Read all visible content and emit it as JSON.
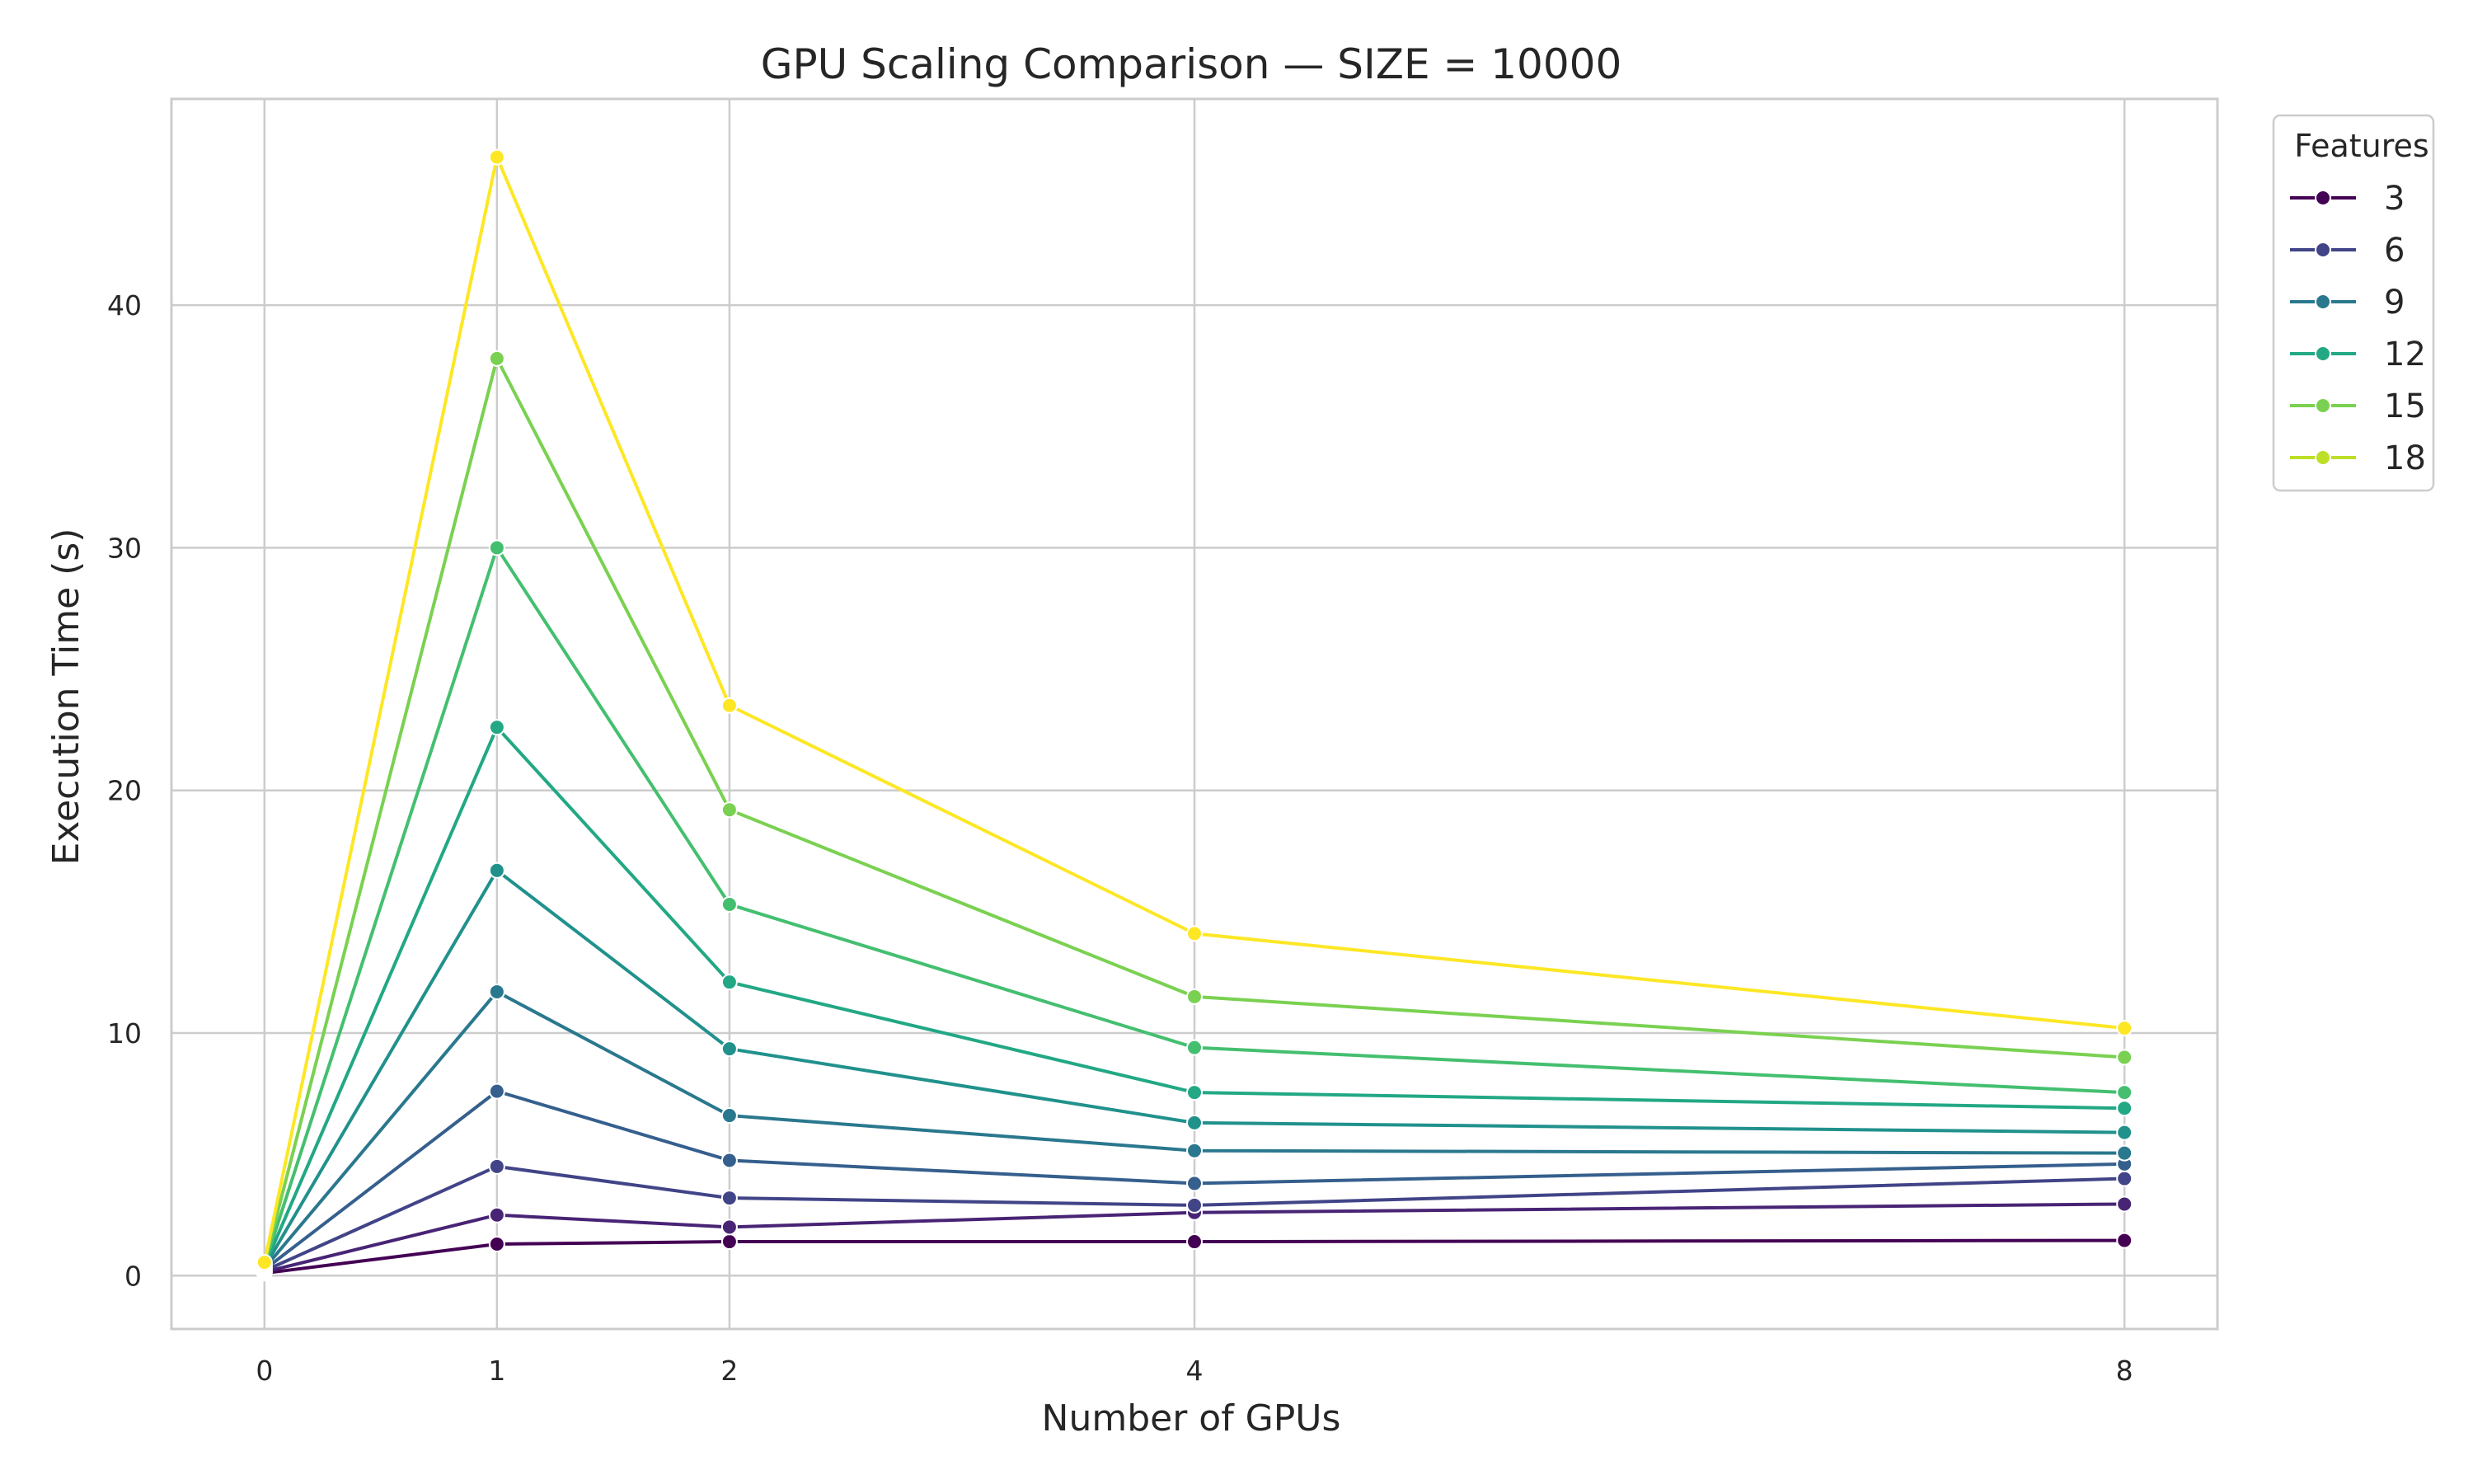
{
  "chart_data": {
    "type": "line",
    "title": "GPU Scaling Comparison — SIZE = 10000",
    "xlabel": "Number of GPUs",
    "ylabel": "Execution Time (s)",
    "x": [
      0,
      1,
      2,
      4,
      8
    ],
    "x_ticks": [
      "0",
      "1",
      "2",
      "4",
      "8"
    ],
    "y_ticks": [
      "0",
      "10",
      "20",
      "30",
      "40"
    ],
    "xlim": [
      -0.4,
      8.4
    ],
    "ylim": [
      -2.2,
      48.5
    ],
    "grid": true,
    "legend": {
      "title": "Features",
      "placement": "outside-top-right",
      "entries": [
        "3",
        "6",
        "9",
        "12",
        "15",
        "18"
      ]
    },
    "series": [
      {
        "label": "3",
        "legend": true,
        "color": "#440154",
        "values": [
          0.1,
          1.3,
          1.4,
          1.4,
          1.45
        ]
      },
      {
        "label": "",
        "legend": false,
        "color": "#482475",
        "values": [
          0.15,
          2.5,
          2.0,
          2.6,
          2.95
        ]
      },
      {
        "label": "6",
        "legend": true,
        "color": "#414487",
        "values": [
          0.2,
          4.5,
          3.2,
          2.9,
          4.0
        ]
      },
      {
        "label": "",
        "legend": false,
        "color": "#355f8d",
        "values": [
          0.25,
          7.6,
          4.75,
          3.8,
          4.6
        ]
      },
      {
        "label": "9",
        "legend": true,
        "color": "#2a788e",
        "values": [
          0.3,
          11.7,
          6.6,
          5.15,
          5.05
        ]
      },
      {
        "label": "",
        "legend": false,
        "color": "#21918c",
        "values": [
          0.35,
          16.7,
          9.35,
          6.3,
          5.9
        ]
      },
      {
        "label": "12",
        "legend": true,
        "color": "#22a884",
        "values": [
          0.4,
          22.6,
          12.1,
          7.55,
          6.9
        ]
      },
      {
        "label": "",
        "legend": false,
        "color": "#44bf70",
        "values": [
          0.45,
          30.0,
          15.3,
          9.4,
          7.55
        ]
      },
      {
        "label": "15",
        "legend": true,
        "color": "#7ad151",
        "values": [
          0.5,
          37.8,
          19.2,
          11.5,
          9.0
        ]
      },
      {
        "label": "",
        "legend": false,
        "color": "#bddf26",
        "values": [
          0.55,
          46.1,
          23.5,
          14.1,
          10.2
        ]
      }
    ],
    "colors": {
      "legend": [
        "#440154",
        "#414487",
        "#2a788e",
        "#22a884",
        "#7ad151",
        "#bddf26"
      ],
      "top_series": "#fde725"
    }
  }
}
